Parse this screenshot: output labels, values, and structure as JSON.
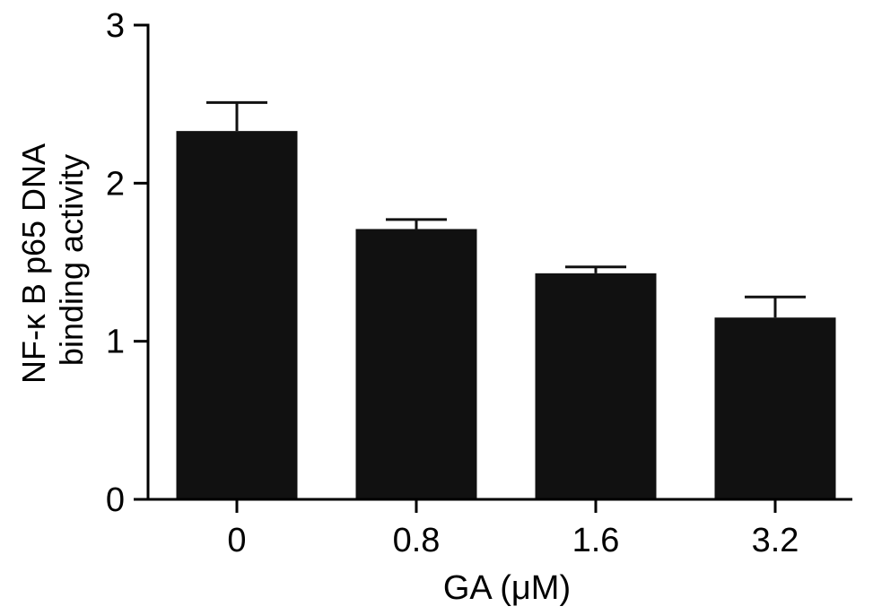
{
  "chart_data": {
    "type": "bar",
    "categories": [
      "0",
      "0.8",
      "1.6",
      "3.2"
    ],
    "series": [
      {
        "values": [
          2.33,
          1.71,
          1.43,
          1.15
        ],
        "error": [
          0.18,
          0.06,
          0.04,
          0.13
        ]
      }
    ],
    "xlabel": "GA (μM)",
    "ylabel_lines": [
      "NF-κ B p65 DNA",
      "binding activity"
    ],
    "ylim": [
      0,
      3
    ],
    "yticks": [
      "0",
      "1",
      "2",
      "3"
    ],
    "grid": false,
    "legend": "none",
    "bar_color": "#111111",
    "axis_color": "#000000"
  }
}
